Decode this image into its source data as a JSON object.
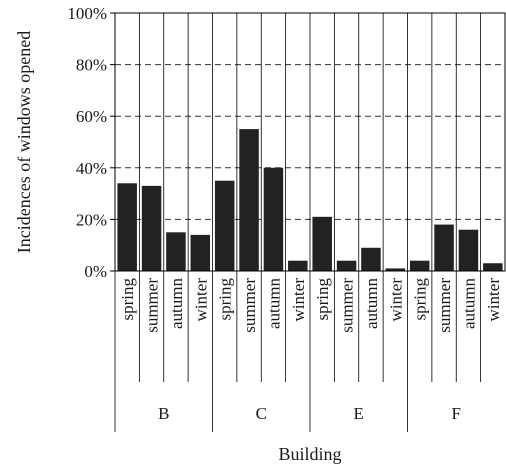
{
  "chart_data": {
    "type": "bar",
    "ylabel": "Incidences of windows opened",
    "xlabel": "Building",
    "ylim": [
      0,
      100
    ],
    "y_ticks": [
      "0%",
      "20%",
      "40%",
      "60%",
      "80%",
      "100%"
    ],
    "grid": "horizontal dashed",
    "groups": [
      {
        "name": "B",
        "categories": [
          "spring",
          "summer",
          "autumn",
          "winter"
        ],
        "values": [
          34,
          33,
          15,
          14
        ]
      },
      {
        "name": "C",
        "categories": [
          "spring",
          "summer",
          "autumn",
          "winter"
        ],
        "values": [
          35,
          55,
          40,
          4
        ]
      },
      {
        "name": "E",
        "categories": [
          "spring",
          "summer",
          "autumn",
          "winter"
        ],
        "values": [
          21,
          4,
          9,
          1
        ]
      },
      {
        "name": "F",
        "categories": [
          "spring",
          "summer",
          "autumn",
          "winter"
        ],
        "values": [
          4,
          18,
          16,
          3
        ]
      }
    ],
    "bar_color": "#222222"
  }
}
